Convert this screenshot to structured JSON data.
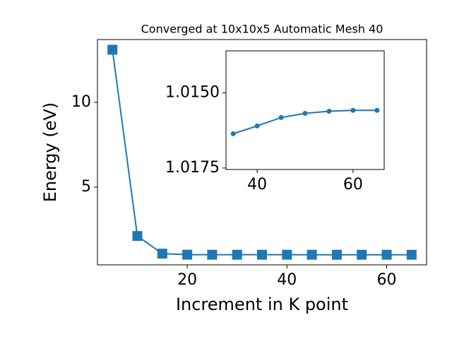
{
  "chart_data": [
    {
      "type": "line",
      "title": "Converged at 10x10x5 Automatic Mesh 40",
      "x_label": "Increment in K point",
      "y_label": "Energy (eV)",
      "x": [
        5,
        10,
        15,
        20,
        25,
        30,
        35,
        40,
        45,
        50,
        55,
        60,
        65
      ],
      "series": [
        {
          "color": "#1f77b4",
          "marker": "square",
          "values": [
            13.1,
            2.12,
            1.08,
            1.02,
            1.017,
            1.0165,
            1.0164,
            1.0161,
            1.0158,
            1.0157,
            1.0156,
            1.0156,
            1.0156
          ]
        }
      ],
      "xlim": [
        2,
        68
      ],
      "ylim": [
        0.42,
        13.7
      ],
      "xticks": [
        20,
        40,
        60
      ],
      "yticks": [
        5,
        10
      ]
    },
    {
      "type": "line",
      "x": [
        35,
        40,
        45,
        50,
        55,
        60,
        65
      ],
      "series": [
        {
          "color": "#1f77b4",
          "marker": "circle",
          "values": [
            1.01636,
            1.0161,
            1.01582,
            1.01568,
            1.01561,
            1.01558,
            1.01558
          ]
        }
      ],
      "xlim": [
        33.5,
        66.5
      ],
      "ylim": [
        1.0136,
        1.01755
      ],
      "y_inverted": true,
      "xticks": [
        40,
        60
      ],
      "yticks": [
        {
          "value": 1.015,
          "label": "1.0150"
        },
        {
          "value": 1.0175,
          "label": "1.0175"
        }
      ]
    }
  ]
}
